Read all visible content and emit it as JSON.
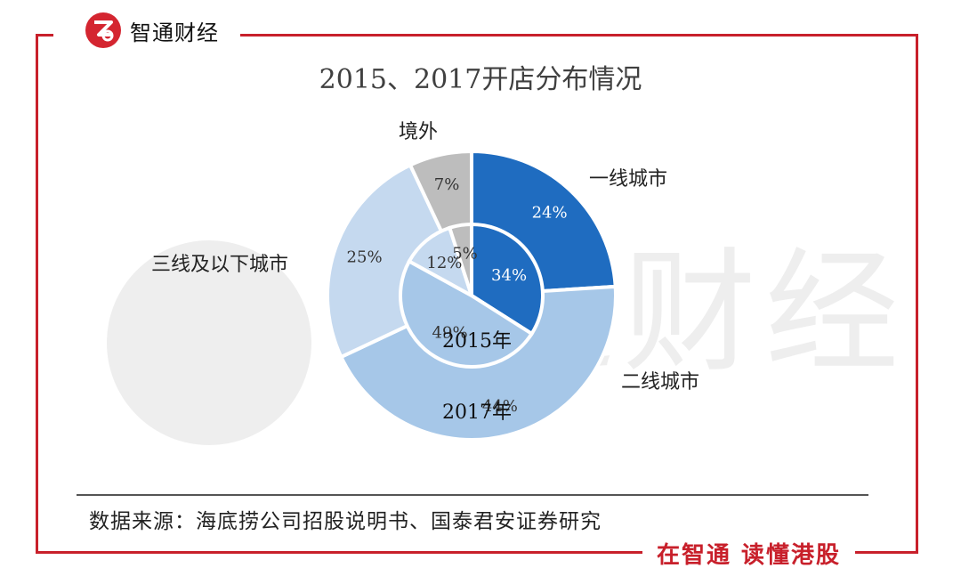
{
  "brand": {
    "name": "智通财经",
    "logo_letter": "Z"
  },
  "watermark": {
    "text": "智通财经"
  },
  "chart_data": {
    "type": "pie",
    "title": "2015、2017开店分布情况",
    "categories": [
      "一线城市",
      "二线城市",
      "三线及以下城市",
      "境外"
    ],
    "series": [
      {
        "name": "2015年",
        "values": [
          34,
          49,
          12,
          5
        ],
        "labels": [
          "34%",
          "49%",
          "12%",
          "5%"
        ]
      },
      {
        "name": "2017年",
        "values": [
          24,
          44,
          25,
          7
        ],
        "labels": [
          "24%",
          "44%",
          "25%",
          "7%"
        ]
      }
    ],
    "colors": [
      "#1f6cc0",
      "#a6c7e8",
      "#c5d9ef",
      "#bdbdbd"
    ]
  },
  "source": "数据来源：海底捞公司招股说明书、国泰君安证券研究",
  "slogan": "在智通 读懂港股"
}
